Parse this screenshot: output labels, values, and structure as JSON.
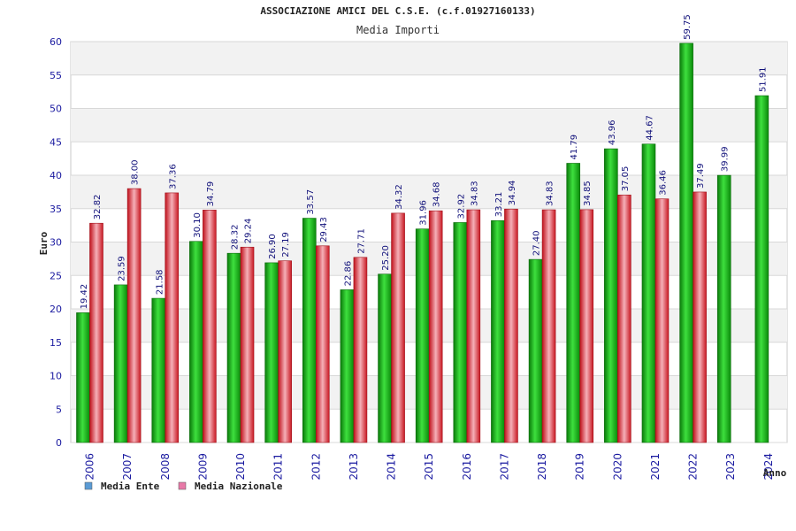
{
  "chart_data": {
    "type": "bar",
    "title": "ASSOCIAZIONE AMICI DEL C.S.E. (c.f.01927160133)",
    "subtitle": "Media Importi",
    "xlabel": "Anno",
    "ylabel": "Euro",
    "ylim": [
      0,
      60
    ],
    "yticks": [
      0,
      5,
      10,
      15,
      20,
      25,
      30,
      35,
      40,
      45,
      50,
      55,
      60
    ],
    "grid": true,
    "legend_position": "bottom-left",
    "categories": [
      "2006",
      "2007",
      "2008",
      "2009",
      "2010",
      "2011",
      "2012",
      "2013",
      "2014",
      "2015",
      "2016",
      "2017",
      "2018",
      "2019",
      "2020",
      "2021",
      "2022",
      "2023",
      "2024"
    ],
    "series": [
      {
        "name": "Media Ente",
        "color": "#22b022",
        "legend_color": "#5b9bd5",
        "values": [
          19.42,
          23.59,
          21.58,
          30.1,
          28.32,
          26.9,
          33.57,
          22.86,
          25.2,
          31.96,
          32.92,
          33.21,
          27.4,
          41.79,
          43.96,
          44.67,
          59.75,
          39.99,
          51.91
        ],
        "labels": [
          "19.42",
          "23.59",
          "21.58",
          "30.10",
          "28.32",
          "26.90",
          "33.57",
          "22.86",
          "25.20",
          "31.96",
          "32.92",
          "33.21",
          "27.40",
          "41.79",
          "43.96",
          "44.67",
          "59.75",
          "39.99",
          "51.91"
        ]
      },
      {
        "name": "Media Nazionale",
        "color": "#e8323c",
        "legend_color": "#e87aa8",
        "values": [
          32.82,
          38.0,
          37.36,
          34.79,
          29.24,
          27.19,
          29.43,
          27.71,
          34.32,
          34.68,
          34.83,
          34.94,
          34.83,
          34.85,
          37.05,
          36.46,
          37.49,
          null,
          null
        ],
        "labels": [
          "32.82",
          "38.00",
          "37.36",
          "34.79",
          "29.24",
          "27.19",
          "29.43",
          "27.71",
          "34.32",
          "34.68",
          "34.83",
          "34.94",
          "34.83",
          "34.85",
          "37.05",
          "36.46",
          "37.49",
          "",
          ""
        ]
      }
    ]
  }
}
